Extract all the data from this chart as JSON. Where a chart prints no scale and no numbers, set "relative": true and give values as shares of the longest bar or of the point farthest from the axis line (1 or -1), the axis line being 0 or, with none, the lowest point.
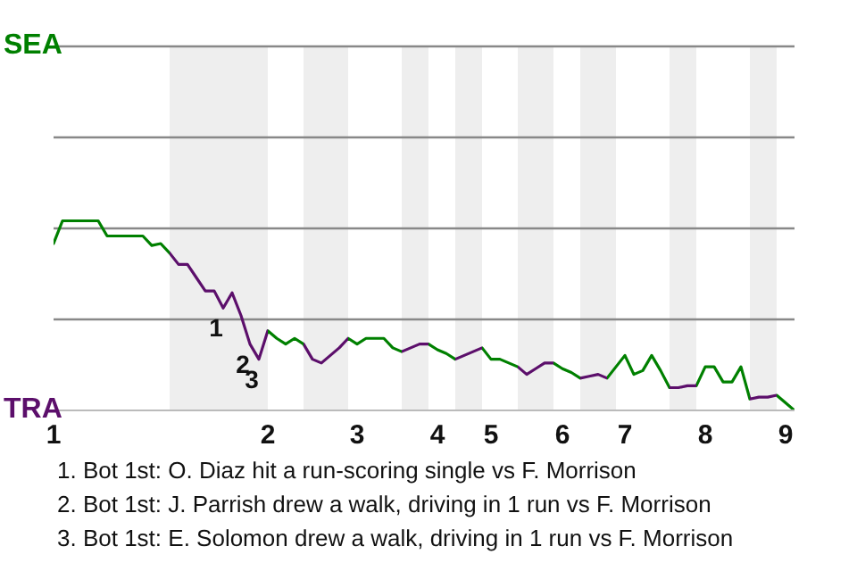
{
  "chart_data": {
    "type": "line",
    "relative": true,
    "categories": [
      "1",
      null,
      null,
      null,
      null,
      null,
      null,
      null,
      null,
      null,
      null,
      null,
      null,
      null,
      null,
      null,
      null,
      null,
      null,
      null,
      null,
      null,
      null,
      null,
      "2",
      null,
      null,
      null,
      null,
      null,
      null,
      null,
      null,
      null,
      "3",
      null,
      null,
      null,
      null,
      null,
      null,
      null,
      null,
      "4",
      null,
      null,
      null,
      null,
      null,
      "5",
      null,
      null,
      null,
      null,
      null,
      null,
      null,
      "6",
      null,
      null,
      null,
      null,
      null,
      null,
      "7",
      null,
      null,
      null,
      null,
      null,
      null,
      null,
      null,
      "8",
      null,
      null,
      null,
      null,
      null,
      null,
      null,
      null,
      "9",
      null
    ],
    "line_style": "solid",
    "series": [
      {
        "values": [
          0.88,
          1,
          1,
          1,
          1,
          1,
          0.92,
          0.92,
          0.92,
          0.92,
          0.92,
          0.87,
          0.88,
          0.83,
          0.77,
          0.77,
          0.7,
          0.63,
          0.63,
          0.54,
          0.62,
          0.5,
          0.35,
          0.27,
          0.42,
          0.38,
          0.35,
          0.38,
          0.35,
          0.27,
          0.25,
          0.29,
          0.33,
          0.38,
          0.35,
          0.38,
          0.38,
          0.38,
          0.33,
          0.31,
          0.33,
          0.35,
          0.35,
          0.32,
          0.3,
          0.27,
          0.29,
          0.31,
          0.33,
          0.27,
          0.27,
          0.25,
          0.23,
          0.19,
          0.22,
          0.25,
          0.25,
          0.22,
          0.2,
          0.17,
          0.18,
          0.19,
          0.17,
          0.23,
          0.29,
          0.19,
          0.21,
          0.29,
          0.21,
          0.12,
          0.12,
          0.13,
          0.13,
          0.23,
          0.23,
          0.15,
          0.15,
          0.23,
          0.06,
          0.07,
          0.07,
          0.08,
          0.04,
          0
        ],
        "colors": [
          "#008000",
          "#008000",
          "#008000",
          "#008000",
          "#008000",
          "#008000",
          "#008000",
          "#008000",
          "#008000",
          "#008000",
          "#008000",
          "#008000",
          "#008000",
          "#5c0f6b",
          "#5c0f6b",
          "#5c0f6b",
          "#5c0f6b",
          "#5c0f6b",
          "#5c0f6b",
          "#5c0f6b",
          "#5c0f6b",
          "#5c0f6b",
          "#5c0f6b",
          "#5c0f6b",
          "#008000",
          "#008000",
          "#008000",
          "#008000",
          "#5c0f6b",
          "#5c0f6b",
          "#5c0f6b",
          "#5c0f6b",
          "#5c0f6b",
          "#008000",
          "#008000",
          "#008000",
          "#008000",
          "#008000",
          "#008000",
          "#5c0f6b",
          "#5c0f6b",
          "#5c0f6b",
          "#008000",
          "#008000",
          "#008000",
          "#5c0f6b",
          "#5c0f6b",
          "#5c0f6b",
          "#008000",
          "#008000",
          "#008000",
          "#008000",
          "#5c0f6b",
          "#5c0f6b",
          "#5c0f6b",
          "#5c0f6b",
          "#008000",
          "#008000",
          "#008000",
          "#5c0f6b",
          "#5c0f6b",
          "#5c0f6b",
          "#008000",
          "#008000",
          "#008000",
          "#008000",
          "#008000",
          "#008000",
          "#008000",
          "#5c0f6b",
          "#5c0f6b",
          "#5c0f6b",
          "#008000",
          "#008000",
          "#008000",
          "#008000",
          "#008000",
          "#008000",
          "#5c0f6b",
          "#5c0f6b",
          "#5c0f6b",
          "#008000",
          "#008000",
          "#008000"
        ]
      }
    ],
    "ref_lines": [
      {
        "axis": "y",
        "value": 0.48,
        "color": "#888888"
      },
      {
        "axis": "y",
        "value": 0.96,
        "color": "#888888"
      },
      {
        "axis": "y",
        "value": 1.44,
        "color": "#888888"
      },
      {
        "axis": "y",
        "value": 1.92,
        "color": "#888888"
      }
    ],
    "annotations": [
      "SEA",
      "TRA",
      "1",
      "2",
      "3",
      "1. Bot 1st: O. Diaz hit a run-scoring single vs F. Morrison",
      "2. Bot 1st: J. Parrish drew a walk, driving in 1 run vs F. Morrison",
      "3. Bot 1st: E. Solomon drew a walk, driving in 1 run vs F. Morrison"
    ]
  }
}
